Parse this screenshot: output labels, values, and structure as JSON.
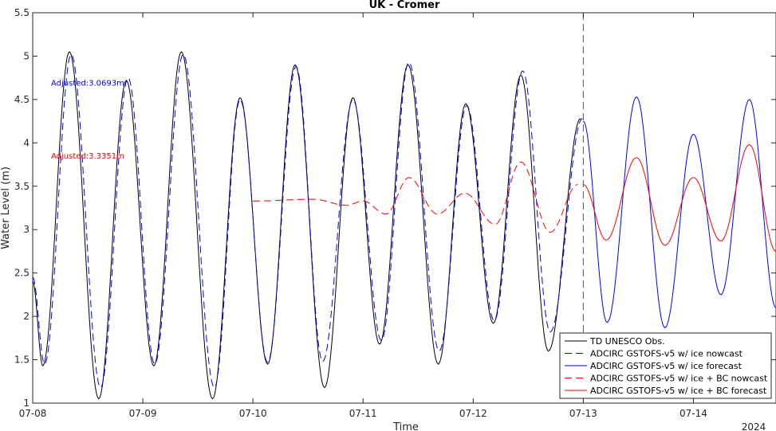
{
  "chart_data": {
    "type": "line",
    "title": "UK - Cromer",
    "xlabel": "Time",
    "ylabel": "Water Level (m)",
    "year_label": "2024",
    "x_tick_labels": [
      "07-08",
      "07-09",
      "07-10",
      "07-11",
      "07-12",
      "07-13",
      "07-14"
    ],
    "y_tick_labels": [
      "1",
      "1.5",
      "2",
      "2.5",
      "3",
      "3.5",
      "4",
      "4.5",
      "5",
      "5.5"
    ],
    "xlim": [
      "2024-07-08 00:00",
      "2024-07-14 18:00"
    ],
    "ylim": [
      1,
      5.5
    ],
    "grid": false,
    "legend_position": "bottom-right",
    "nowcast_forecast_boundary": "2024-07-13 00:00",
    "annotations": [
      {
        "text": "Adjusted:3.0693m",
        "color": "#0000ff"
      },
      {
        "text": "Adjusted:3.3351m",
        "color": "#ff0000"
      }
    ],
    "series": [
      {
        "name": "TD UNESCO Obs.",
        "color": "#000000",
        "dash": "solid",
        "x": [
          "2024-07-08 00:00",
          "2024-07-08 02:12",
          "2024-07-08 08:00",
          "2024-07-08 14:24",
          "2024-07-08 20:24",
          "2024-07-09 02:24",
          "2024-07-09 08:24",
          "2024-07-09 15:12",
          "2024-07-09 21:12",
          "2024-07-10 03:12",
          "2024-07-10 09:12",
          "2024-07-10 15:36",
          "2024-07-10 21:48",
          "2024-07-11 03:36",
          "2024-07-11 09:48",
          "2024-07-11 16:24",
          "2024-07-11 22:24",
          "2024-07-12 04:24",
          "2024-07-12 10:24",
          "2024-07-12 16:24",
          "2024-07-12 23:24"
        ],
        "y": [
          2.4,
          1.43,
          5.05,
          1.05,
          4.72,
          1.43,
          5.05,
          1.05,
          4.52,
          1.45,
          4.9,
          1.18,
          4.52,
          1.68,
          4.9,
          1.45,
          4.45,
          1.92,
          4.78,
          1.6,
          4.28
        ]
      },
      {
        "name": "ADCIRC GSTOFS-v5 w/ ice nowcast",
        "color": "#0000ff",
        "dash": "dashed",
        "x": [
          "2024-07-08 00:00",
          "2024-07-08 02:36",
          "2024-07-08 08:24",
          "2024-07-08 14:48",
          "2024-07-08 20:48",
          "2024-07-09 02:36",
          "2024-07-09 08:48",
          "2024-07-09 15:36",
          "2024-07-09 21:12",
          "2024-07-10 03:12",
          "2024-07-10 09:24",
          "2024-07-10 15:12",
          "2024-07-10 21:48",
          "2024-07-11 04:00",
          "2024-07-11 10:00",
          "2024-07-11 16:36",
          "2024-07-11 22:36",
          "2024-07-12 04:36",
          "2024-07-12 10:48",
          "2024-07-12 16:48",
          "2024-07-12 23:48"
        ],
        "y": [
          2.45,
          1.45,
          5.02,
          1.18,
          4.75,
          1.45,
          5.02,
          1.18,
          4.5,
          1.47,
          4.88,
          1.48,
          4.5,
          1.72,
          4.93,
          1.6,
          4.43,
          1.95,
          4.83,
          1.82,
          4.28
        ]
      },
      {
        "name": "ADCIRC GSTOFS-v5 w/ ice forecast",
        "color": "#0000ff",
        "dash": "solid",
        "x": [
          "2024-07-13 00:00",
          "2024-07-13 05:12",
          "2024-07-13 11:36",
          "2024-07-13 17:48",
          "2024-07-14 00:00",
          "2024-07-14 06:00",
          "2024-07-14 12:12",
          "2024-07-14 18:00"
        ],
        "y": [
          4.25,
          1.93,
          4.53,
          1.87,
          4.1,
          2.25,
          4.5,
          2.1
        ]
      },
      {
        "name": "ADCIRC GSTOFS-v5 w/ ice + BC nowcast",
        "color": "#ff0000",
        "dash": "dashed",
        "x": [
          "2024-07-10 00:00",
          "2024-07-10 13:12",
          "2024-07-10 20:24",
          "2024-07-11 00:00",
          "2024-07-11 05:00",
          "2024-07-11 10:00",
          "2024-07-11 16:12",
          "2024-07-11 22:12",
          "2024-07-12 04:48",
          "2024-07-12 10:24",
          "2024-07-12 16:48",
          "2024-07-12 22:48"
        ],
        "y": [
          3.33,
          3.35,
          3.28,
          3.33,
          3.18,
          3.6,
          3.18,
          3.42,
          3.06,
          3.78,
          2.97,
          3.52
        ]
      },
      {
        "name": "ADCIRC GSTOFS-v5 w/ ice + BC forecast",
        "color": "#ff0000",
        "dash": "solid",
        "x": [
          "2024-07-13 00:00",
          "2024-07-13 05:00",
          "2024-07-13 11:36",
          "2024-07-13 17:48",
          "2024-07-14 00:00",
          "2024-07-14 06:00",
          "2024-07-14 12:12",
          "2024-07-14 18:00"
        ],
        "y": [
          3.52,
          2.88,
          3.83,
          2.82,
          3.6,
          2.87,
          3.98,
          2.75
        ]
      }
    ]
  }
}
